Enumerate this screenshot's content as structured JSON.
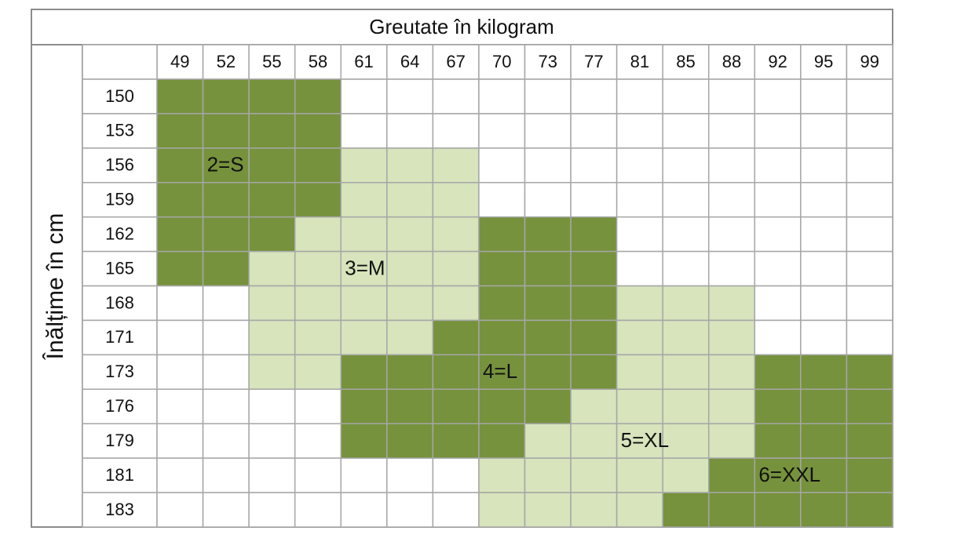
{
  "title": "Greutate în kilogram",
  "y_label": "Înălțime în cm",
  "columns": [
    "49",
    "52",
    "55",
    "58",
    "61",
    "64",
    "67",
    "70",
    "73",
    "77",
    "81",
    "85",
    "88",
    "92",
    "95",
    "99"
  ],
  "colors": {
    "dark": "#76923c",
    "light": "#d7e4bc"
  },
  "rows": [
    {
      "height": "150",
      "cells": [
        "dark",
        "dark",
        "dark",
        "dark",
        null,
        null,
        null,
        null,
        null,
        null,
        null,
        null,
        null,
        null,
        null,
        null
      ]
    },
    {
      "height": "153",
      "cells": [
        "dark",
        "dark",
        "dark",
        "dark",
        null,
        null,
        null,
        null,
        null,
        null,
        null,
        null,
        null,
        null,
        null,
        null
      ]
    },
    {
      "height": "156",
      "cells": [
        "dark",
        "dark",
        "dark",
        "dark",
        "light",
        "light",
        "light",
        null,
        null,
        null,
        null,
        null,
        null,
        null,
        null,
        null
      ]
    },
    {
      "height": "159",
      "cells": [
        "dark",
        "dark",
        "dark",
        "dark",
        "light",
        "light",
        "light",
        null,
        null,
        null,
        null,
        null,
        null,
        null,
        null,
        null
      ]
    },
    {
      "height": "162",
      "cells": [
        "dark",
        "dark",
        "dark",
        "light",
        "light",
        "light",
        "light",
        "dark",
        "dark",
        "dark",
        null,
        null,
        null,
        null,
        null,
        null
      ]
    },
    {
      "height": "165",
      "cells": [
        "dark",
        "dark",
        "light",
        "light",
        "light",
        "light",
        "light",
        "dark",
        "dark",
        "dark",
        null,
        null,
        null,
        null,
        null,
        null
      ]
    },
    {
      "height": "168",
      "cells": [
        null,
        null,
        "light",
        "light",
        "light",
        "light",
        "light",
        "dark",
        "dark",
        "dark",
        "light",
        "light",
        "light",
        null,
        null,
        null
      ]
    },
    {
      "height": "171",
      "cells": [
        null,
        null,
        "light",
        "light",
        "light",
        "light",
        "dark",
        "dark",
        "dark",
        "dark",
        "light",
        "light",
        "light",
        null,
        null,
        null
      ]
    },
    {
      "height": "173",
      "cells": [
        null,
        null,
        "light",
        "light",
        "dark",
        "dark",
        "dark",
        "dark",
        "dark",
        "dark",
        "light",
        "light",
        "light",
        "dark",
        "dark",
        "dark"
      ]
    },
    {
      "height": "176",
      "cells": [
        null,
        null,
        null,
        null,
        "dark",
        "dark",
        "dark",
        "dark",
        "dark",
        "light",
        "light",
        "light",
        "light",
        "dark",
        "dark",
        "dark"
      ]
    },
    {
      "height": "179",
      "cells": [
        null,
        null,
        null,
        null,
        "dark",
        "dark",
        "dark",
        "dark",
        "light",
        "light",
        "light",
        "light",
        "light",
        "dark",
        "dark",
        "dark"
      ]
    },
    {
      "height": "181",
      "cells": [
        null,
        null,
        null,
        null,
        null,
        null,
        null,
        "light",
        "light",
        "light",
        "light",
        "light",
        "dark",
        "dark",
        "dark",
        "dark"
      ]
    },
    {
      "height": "183",
      "cells": [
        null,
        null,
        null,
        null,
        null,
        null,
        null,
        "light",
        "light",
        "light",
        "light",
        "dark",
        "dark",
        "dark",
        "dark",
        "dark"
      ]
    }
  ],
  "labels": [
    {
      "text": "2=S",
      "row": 2,
      "col": 1
    },
    {
      "text": "3=M",
      "row": 5,
      "col": 4
    },
    {
      "text": "4=L",
      "row": 8,
      "col": 7
    },
    {
      "text": "5=XL",
      "row": 10,
      "col": 10
    },
    {
      "text": "6=XXL",
      "row": 11,
      "col": 13
    }
  ]
}
